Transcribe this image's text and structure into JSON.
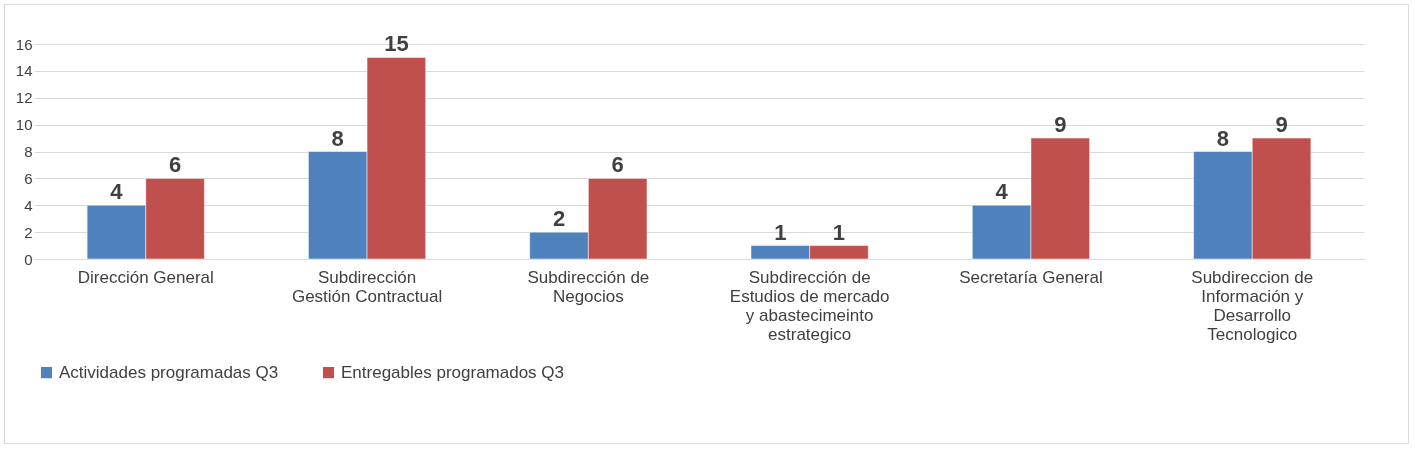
{
  "chart_data": {
    "type": "bar",
    "categories": [
      "Dirección General",
      "Subdirección Gestión Contractual",
      "Subdirección de Negocios",
      "Subdirección de Estudios de mercado y abastecimeinto estrategico",
      "Secretaría General",
      "Subdireccion de Información y Desarrollo Tecnologico"
    ],
    "series": [
      {
        "name": "Actividades programadas Q3",
        "color": "#4f81bd",
        "values": [
          4,
          8,
          2,
          1,
          4,
          8
        ]
      },
      {
        "name": "Entregables programados Q3",
        "color": "#c0504d",
        "values": [
          6,
          15,
          6,
          1,
          9,
          9
        ]
      }
    ],
    "ylim": [
      0,
      16
    ],
    "yticks": [
      0,
      2,
      4,
      6,
      8,
      10,
      12,
      14,
      16
    ],
    "grid": "y",
    "legend": "bottom",
    "data_labels": true
  }
}
